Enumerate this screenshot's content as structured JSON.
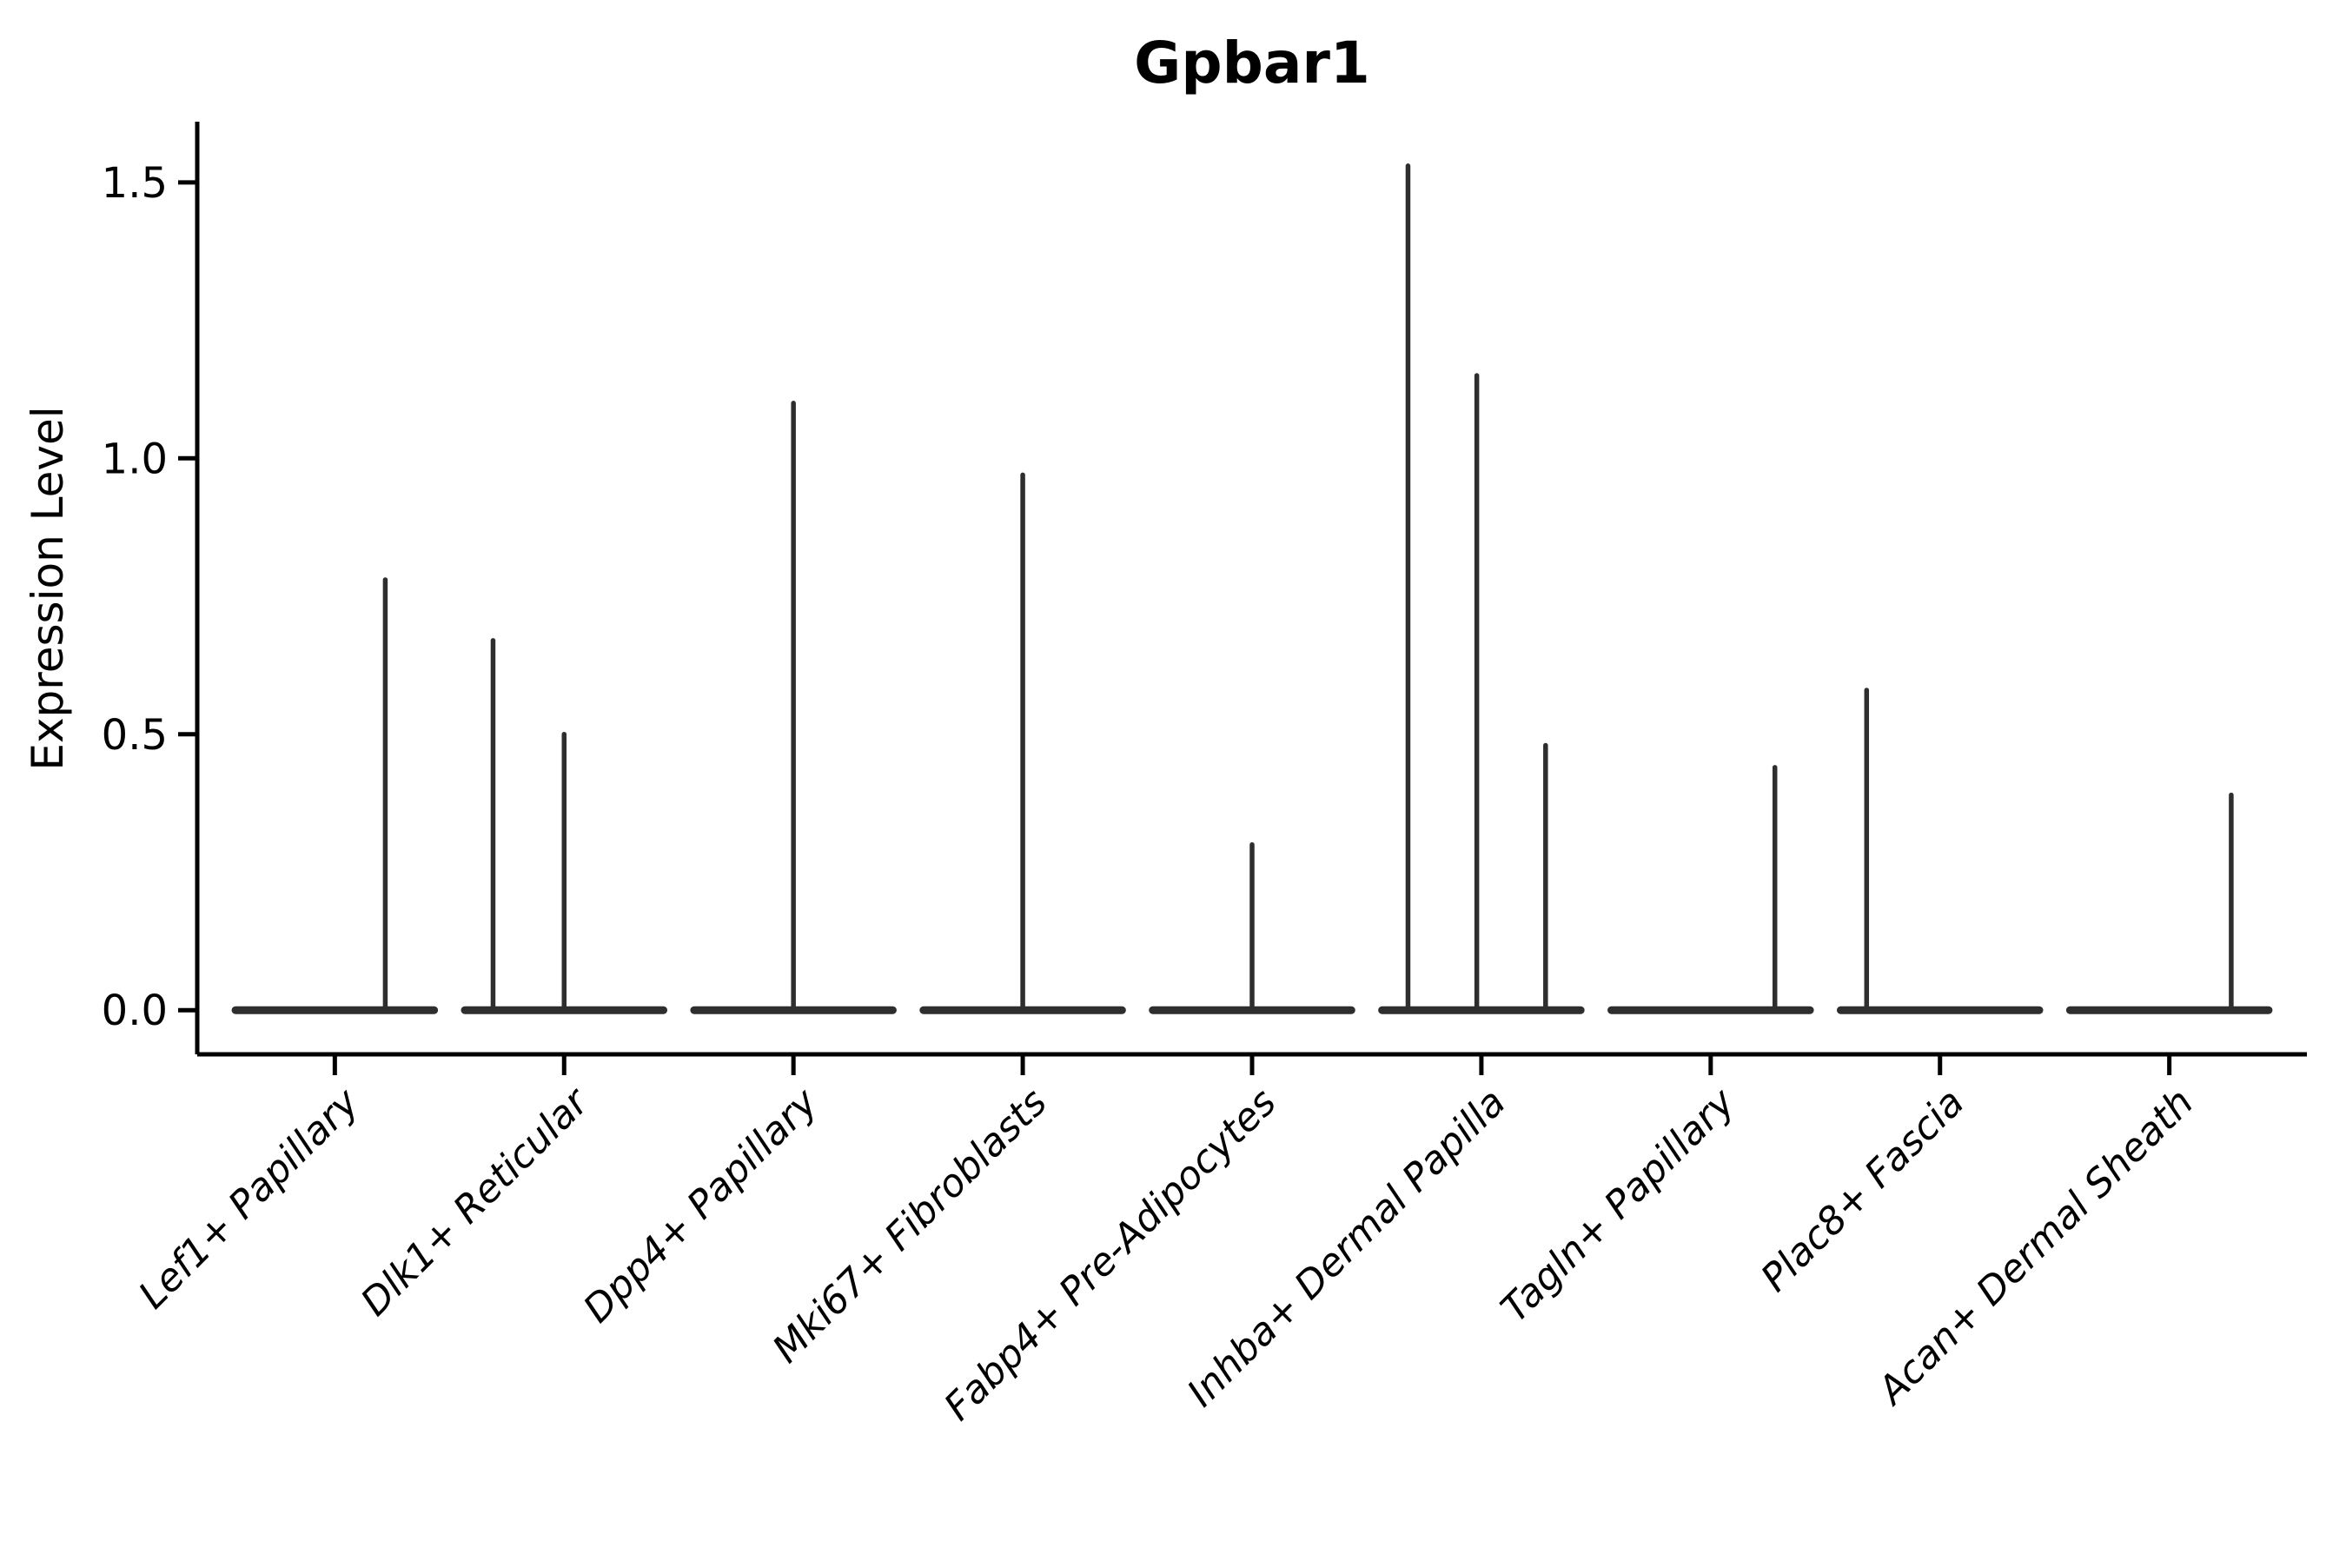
{
  "chart_data": {
    "type": "violin",
    "title": "Gpbar1",
    "ylabel": "Expression Level",
    "xlabel": "",
    "grid": false,
    "legend": "none",
    "background": "#ffffff",
    "ylim": [
      -0.08,
      1.61
    ],
    "ytick_values": [
      0.0,
      0.5,
      1.0,
      1.5
    ],
    "ytick_labels": [
      "0.0",
      "0.5",
      "1.0",
      "1.5"
    ],
    "x_tick_rotation": 45,
    "categories": [
      "Lef1+ Papillary",
      "Dlk1+ Reticular",
      "Dpp4+ Papillary",
      "Mki67+ Fibroblasts",
      "Fabp4+ Pre-Adipocytes",
      "Inhba+ Dermal Papilla",
      "Tagln+ Papillary",
      "Plac8+ Fascia",
      "Acan+ Dermal Sheath"
    ],
    "body_width_units": 0.9,
    "violins": [
      {
        "category": "Lef1+ Papillary",
        "body_value": 0.0,
        "spikes": [
          {
            "offset": 0.22,
            "max": 0.78
          }
        ]
      },
      {
        "category": "Dlk1+ Reticular",
        "body_value": 0.0,
        "spikes": [
          {
            "offset": -0.31,
            "max": 0.67
          },
          {
            "offset": 0.0,
            "max": 0.5
          }
        ]
      },
      {
        "category": "Dpp4+ Papillary",
        "body_value": 0.0,
        "spikes": [
          {
            "offset": 0.0,
            "max": 1.1
          }
        ]
      },
      {
        "category": "Mki67+ Fibroblasts",
        "body_value": 0.0,
        "spikes": [
          {
            "offset": 0.0,
            "max": 0.97
          }
        ]
      },
      {
        "category": "Fabp4+ Pre-Adipocytes",
        "body_value": 0.0,
        "spikes": [
          {
            "offset": 0.0,
            "max": 0.3
          }
        ]
      },
      {
        "category": "Inhba+ Dermal Papilla",
        "body_value": 0.0,
        "spikes": [
          {
            "offset": -0.32,
            "max": 1.53
          },
          {
            "offset": -0.02,
            "max": 1.15
          },
          {
            "offset": 0.28,
            "max": 0.48
          }
        ]
      },
      {
        "category": "Tagln+ Papillary",
        "body_value": 0.0,
        "spikes": [
          {
            "offset": 0.28,
            "max": 0.44
          }
        ]
      },
      {
        "category": "Plac8+ Fascia",
        "body_value": 0.0,
        "spikes": [
          {
            "offset": -0.32,
            "max": 0.58
          }
        ]
      },
      {
        "category": "Acan+ Dermal Sheath",
        "body_value": 0.0,
        "spikes": [
          {
            "offset": 0.27,
            "max": 0.39
          }
        ]
      }
    ],
    "colors": {
      "violin": "#2e2e2e",
      "axis": "#000000",
      "text": "#000000"
    }
  }
}
